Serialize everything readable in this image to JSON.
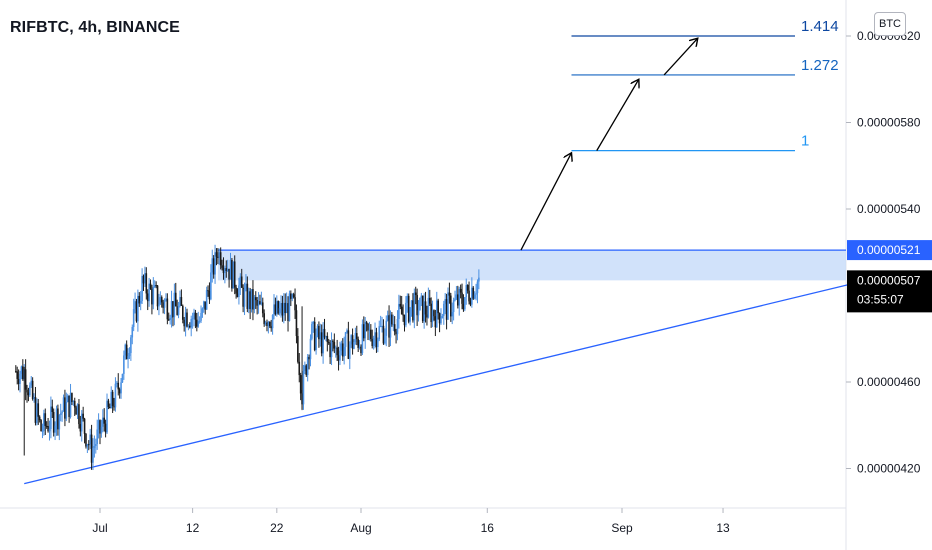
{
  "header": {
    "title": "RIFBTC, 4h, BINANCE",
    "currency_badge": "BTC"
  },
  "price_axis": {
    "labels": [
      "0.00000620",
      "0.00000580",
      "0.00000540",
      "0.00000460",
      "0.00000420"
    ],
    "ticks": [
      6.2e-06,
      5.8e-06,
      5.4e-06,
      4.6e-06,
      4.2e-06
    ],
    "resistance_tag": {
      "text": "0.00000521",
      "value": 5.21e-06,
      "color": "#2962ff"
    },
    "last_price_tag": {
      "text": "0.00000507",
      "countdown": "03:55:07",
      "value": 5.07e-06,
      "color": "#000000"
    }
  },
  "time_axis": {
    "labels": [
      "Jul",
      "12",
      "22",
      "Aug",
      "16",
      "Sep",
      "13"
    ],
    "dates": [
      "2021-07-01",
      "2021-07-12",
      "2021-07-22",
      "2021-08-01",
      "2021-08-16",
      "2021-09-01",
      "2021-09-13"
    ]
  },
  "fib_levels": [
    {
      "label": "1.414",
      "price": 6.2e-06,
      "color": "#0d47a1"
    },
    {
      "label": "1.272",
      "price": 6.02e-06,
      "color": "#1565c0"
    },
    {
      "label": "1",
      "price": 5.67e-06,
      "color": "#2196f3"
    }
  ],
  "colors": {
    "up_candle": "#4a90e2",
    "down_candle": "#1a1a1a",
    "trendline": "#2962ff",
    "zone_fill": "#c9ddf9",
    "arrow": "#000000"
  },
  "chart_data": {
    "type": "candlestick",
    "symbol": "RIFBTC",
    "interval": "4h",
    "exchange": "BINANCE",
    "x_range": [
      "2021-06-21",
      "2021-09-30"
    ],
    "ylim": [
      4e-06,
      6.45e-06
    ],
    "grid": false,
    "approx_close_path": [
      {
        "date": "2021-06-22",
        "close": 4.65e-06
      },
      {
        "date": "2021-06-24",
        "close": 4.38e-06
      },
      {
        "date": "2021-06-28",
        "close": 4.52e-06
      },
      {
        "date": "2021-06-30",
        "close": 4.28e-06
      },
      {
        "date": "2021-07-03",
        "close": 4.55e-06
      },
      {
        "date": "2021-07-06",
        "close": 5.05e-06
      },
      {
        "date": "2021-07-08",
        "close": 4.98e-06
      },
      {
        "date": "2021-07-11",
        "close": 4.92e-06
      },
      {
        "date": "2021-07-13",
        "close": 4.88e-06
      },
      {
        "date": "2021-07-15",
        "close": 5.22e-06
      },
      {
        "date": "2021-07-16",
        "close": 5.15e-06
      },
      {
        "date": "2021-07-18",
        "close": 5e-06
      },
      {
        "date": "2021-07-21",
        "close": 4.9e-06
      },
      {
        "date": "2021-07-24",
        "close": 4.95e-06
      },
      {
        "date": "2021-07-25",
        "close": 4.55e-06
      },
      {
        "date": "2021-07-26",
        "close": 4.82e-06
      },
      {
        "date": "2021-07-29",
        "close": 4.75e-06
      },
      {
        "date": "2021-08-01",
        "close": 4.8e-06
      },
      {
        "date": "2021-08-04",
        "close": 4.85e-06
      },
      {
        "date": "2021-08-07",
        "close": 4.95e-06
      },
      {
        "date": "2021-08-10",
        "close": 4.92e-06
      },
      {
        "date": "2021-08-13",
        "close": 4.98e-06
      },
      {
        "date": "2021-08-15",
        "close": 5.07e-06
      }
    ],
    "annotations": {
      "resistance_zone": {
        "top": 5.21e-06,
        "bottom": 5.07e-06,
        "from": "2021-07-15",
        "to": "2021-09-30"
      },
      "ascending_trendline": [
        {
          "date": "2021-06-22",
          "price": 4.13e-06
        },
        {
          "date": "2021-09-30",
          "price": 5.07e-06
        }
      ],
      "fib_targets": [
        "1",
        "1.272",
        "1.414"
      ],
      "projection_arrows": [
        {
          "from": {
            "date": "2021-08-20",
            "price": 5.21e-06
          },
          "to": {
            "date": "2021-08-26",
            "price": 5.66e-06
          }
        },
        {
          "from": {
            "date": "2021-08-29",
            "price": 5.67e-06
          },
          "to": {
            "date": "2021-09-03",
            "price": 6e-06
          }
        },
        {
          "from": {
            "date": "2021-09-06",
            "price": 6.02e-06
          },
          "to": {
            "date": "2021-09-10",
            "price": 6.19e-06
          }
        }
      ]
    }
  }
}
